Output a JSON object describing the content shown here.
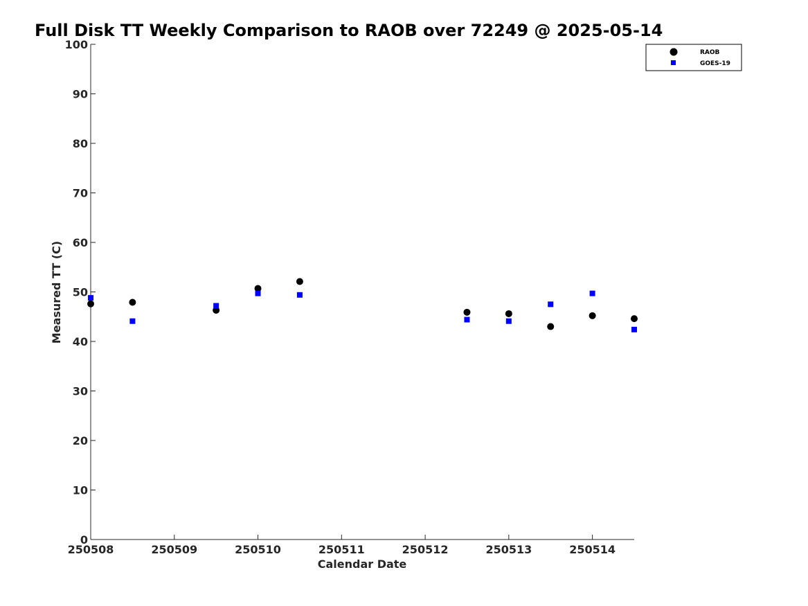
{
  "chart_data": {
    "type": "scatter",
    "title": "Full Disk TT Weekly Comparison to RAOB over 72249 @ 2025-05-14",
    "xlabel": "Calendar Date",
    "ylabel": "Measured TT (C)",
    "xlim": [
      0,
      6.5
    ],
    "ylim": [
      0,
      100
    ],
    "x_tick_values": [
      0,
      1,
      2,
      3,
      4,
      5,
      6
    ],
    "x_tick_labels": [
      "250508",
      "250509",
      "250510",
      "250511",
      "250512",
      "250513",
      "250514"
    ],
    "y_ticks": [
      0,
      10,
      20,
      30,
      40,
      50,
      60,
      70,
      80,
      90,
      100
    ],
    "grid": false,
    "legend_position": "top-right",
    "series": [
      {
        "name": "RAOB",
        "marker": "circle",
        "color": "#000000",
        "x": [
          0,
          0.5,
          1.5,
          2,
          2.5,
          4.5,
          5,
          5.5,
          6,
          6.5
        ],
        "y": [
          47.6,
          47.9,
          46.3,
          50.7,
          52.1,
          45.9,
          45.6,
          43.0,
          45.2,
          44.6
        ]
      },
      {
        "name": "GOES-19",
        "marker": "square",
        "color": "#0000ff",
        "x": [
          0,
          0.5,
          1.5,
          2,
          2.5,
          4.5,
          5,
          5.5,
          6,
          6.5
        ],
        "y": [
          48.8,
          44.1,
          47.2,
          49.7,
          49.4,
          44.4,
          44.1,
          47.5,
          49.7,
          42.4
        ]
      }
    ]
  }
}
